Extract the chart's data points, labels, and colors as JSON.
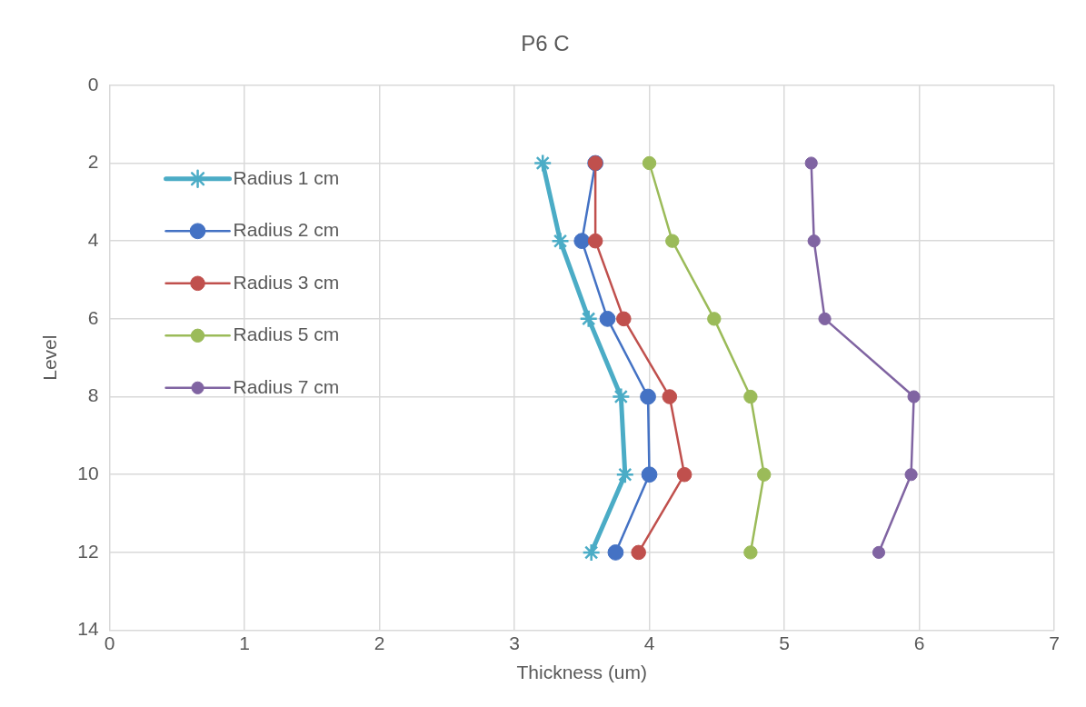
{
  "chart_data": {
    "type": "line",
    "title": "P6 C",
    "xlabel": "Thickness (um)",
    "ylabel": "Level",
    "xlim": [
      0,
      7
    ],
    "xticks": [
      0,
      1,
      2,
      3,
      4,
      5,
      6,
      7
    ],
    "ylim": [
      14,
      0
    ],
    "yticks": [
      0,
      2,
      4,
      6,
      8,
      10,
      12,
      14
    ],
    "grid": true,
    "legend": "top left",
    "series": [
      {
        "name": "Radius 1 cm",
        "color": "#4bacc6",
        "marker": "cross",
        "x": [
          3.21,
          3.34,
          3.55,
          3.79,
          3.82,
          3.57
        ],
        "values": [
          2,
          4,
          6,
          8,
          10,
          12
        ]
      },
      {
        "name": "Radius 2 cm",
        "color": "#4472c4",
        "marker": "circle",
        "x": [
          3.6,
          3.5,
          3.69,
          3.99,
          4.0,
          3.75
        ],
        "values": [
          2,
          4,
          6,
          8,
          10,
          12
        ]
      },
      {
        "name": "Radius 3 cm",
        "color": "#c0504d",
        "marker": "circle",
        "x": [
          3.6,
          3.6,
          3.81,
          4.15,
          4.26,
          3.92
        ],
        "values": [
          2,
          4,
          6,
          8,
          10,
          12
        ]
      },
      {
        "name": "Radius 5 cm",
        "color": "#9bbb59",
        "marker": "circle",
        "x": [
          4.0,
          4.17,
          4.48,
          4.75,
          4.85,
          4.75
        ],
        "values": [
          2,
          4,
          6,
          8,
          10,
          12
        ]
      },
      {
        "name": "Radius 7 cm",
        "color": "#8064a2",
        "marker": "circle",
        "x": [
          5.2,
          5.22,
          5.3,
          5.96,
          5.94,
          5.7
        ],
        "values": [
          2,
          4,
          6,
          8,
          10,
          12
        ]
      }
    ]
  }
}
